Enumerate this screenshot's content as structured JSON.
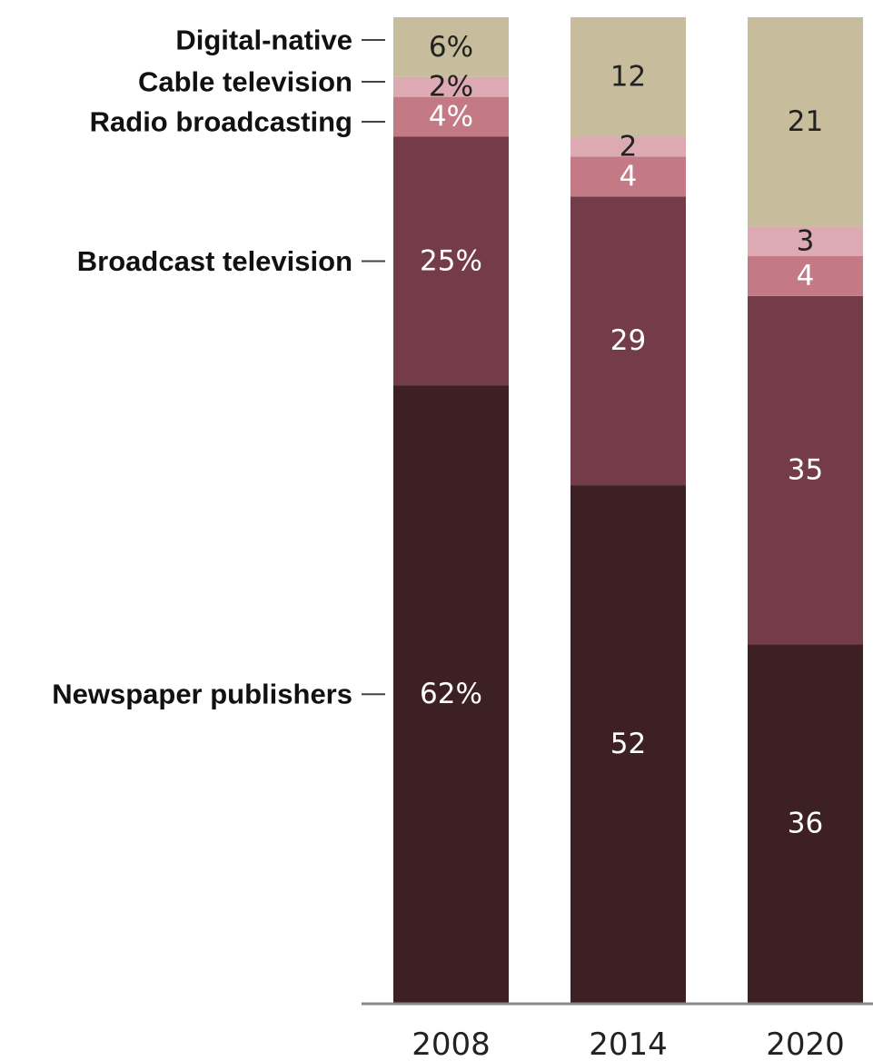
{
  "chart_data": {
    "type": "bar",
    "stacked": true,
    "categories": [
      "2008",
      "2014",
      "2020"
    ],
    "series": [
      {
        "name": "Newspaper publishers",
        "values": [
          62,
          52,
          36
        ],
        "labels": [
          "62%",
          "52",
          "36"
        ],
        "color": "#3c2024",
        "text_color": "#ffffff"
      },
      {
        "name": "Broadcast television",
        "values": [
          25,
          29,
          35
        ],
        "labels": [
          "25%",
          "29",
          "35"
        ],
        "color": "#733c48",
        "text_color": "#ffffff"
      },
      {
        "name": "Radio broadcasting",
        "values": [
          4,
          4,
          4
        ],
        "labels": [
          "4%",
          "4",
          "4"
        ],
        "color": "#c47a85",
        "text_color": "#ffffff"
      },
      {
        "name": "Cable television",
        "values": [
          2,
          2,
          3
        ],
        "labels": [
          "2%",
          "2",
          "3"
        ],
        "color": "#ddaab3",
        "text_color": "#222222"
      },
      {
        "name": "Digital-native",
        "values": [
          6,
          12,
          21
        ],
        "labels": [
          "6%",
          "12",
          "21"
        ],
        "color": "#c7bc9b",
        "text_color": "#222222"
      }
    ],
    "ylim": [
      0,
      100
    ],
    "legend": "left-of-first-bar"
  }
}
